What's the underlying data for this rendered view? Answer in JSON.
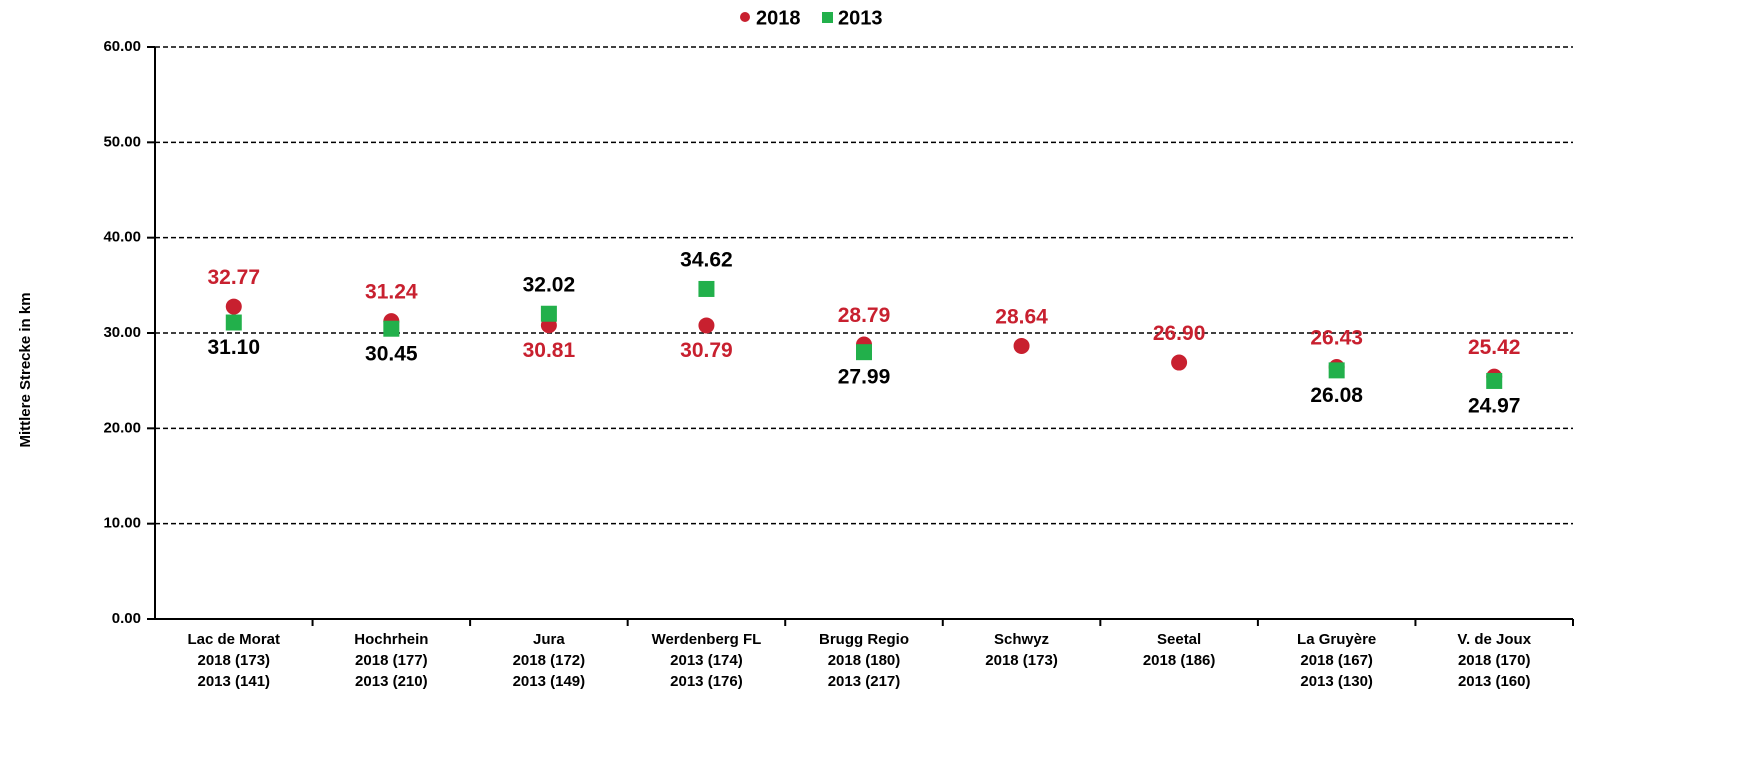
{
  "chart_data": {
    "type": "scatter",
    "ylabel": "Mittlere Strecke in km",
    "categories": [
      [
        "Lac de Morat",
        "2018 (173)",
        "2013 (141)"
      ],
      [
        "Hochrhein",
        "2018 (177)",
        "2013 (210)"
      ],
      [
        "Jura",
        "2018 (172)",
        "2013 (149)"
      ],
      [
        "Werdenberg FL",
        "2013 (174)",
        "2013 (176)"
      ],
      [
        "Brugg Regio",
        "2018 (180)",
        "2013 (217)"
      ],
      [
        "Schwyz",
        "2018 (173)"
      ],
      [
        "Seetal",
        "2018 (186)"
      ],
      [
        "La Gruyère",
        "2018 (167)",
        "2013 (130)"
      ],
      [
        "V. de Joux",
        "2018 (170)",
        "2013 (160)"
      ]
    ],
    "series": [
      {
        "name": "2018",
        "color": "#c8202f",
        "label_color": "#c8202f",
        "marker": "circle",
        "values": [
          32.77,
          31.24,
          30.81,
          30.79,
          28.79,
          28.64,
          26.9,
          26.43,
          25.42
        ],
        "value_labels": [
          "32.77",
          "31.24",
          "30.81",
          "30.79",
          "28.79",
          "28.64",
          "26.90",
          "26.43",
          "25.42"
        ]
      },
      {
        "name": "2013",
        "color": "#22b04b",
        "label_color": "#000000",
        "marker": "square",
        "values": [
          31.1,
          30.45,
          32.02,
          34.62,
          27.99,
          null,
          null,
          26.08,
          24.97
        ],
        "value_labels": [
          "31.10",
          "30.45",
          "32.02",
          "34.62",
          "27.99",
          null,
          null,
          "26.08",
          "24.97"
        ]
      }
    ],
    "ylim": [
      0,
      60
    ],
    "yticks": [
      {
        "value": 0,
        "label": "0.00"
      },
      {
        "value": 10,
        "label": "10.00"
      },
      {
        "value": 20,
        "label": "20.00"
      },
      {
        "value": 30,
        "label": "30.00"
      },
      {
        "value": 40,
        "label": "40.00"
      },
      {
        "value": 50,
        "label": "50.00"
      },
      {
        "value": 60,
        "label": "60.00"
      }
    ],
    "grid": true,
    "legend": "top"
  }
}
